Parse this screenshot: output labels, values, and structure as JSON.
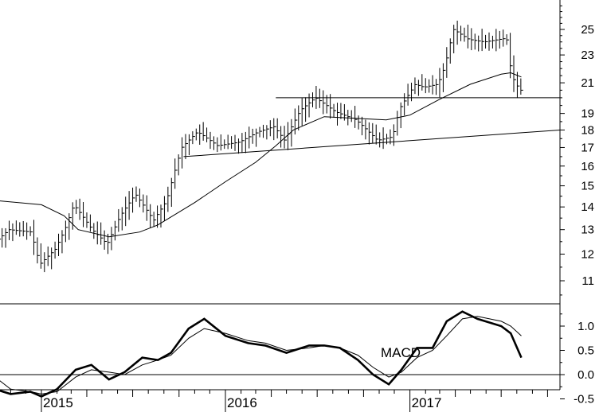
{
  "chart_data": [
    {
      "type": "line",
      "subtype": "weekly price bars (high-low-close) with moving average and trendlines",
      "y_scale": "log",
      "ylim": [
        10,
        28
      ],
      "yticks": [
        11,
        12,
        13,
        14,
        15,
        16,
        17,
        18,
        19,
        21,
        23,
        25
      ],
      "x_labels": [
        "2015",
        "2016",
        "2017"
      ],
      "x_range": [
        "2014-10",
        "2017-10"
      ],
      "price_path": [
        [
          "2014-10-01",
          12.4
        ],
        [
          "2014-11-01",
          13.0
        ],
        [
          "2014-12-15",
          12.9
        ],
        [
          "2015-01-01",
          11.6
        ],
        [
          "2015-02-01",
          12.2
        ],
        [
          "2015-02-20",
          13.0
        ],
        [
          "2015-03-10",
          14.1
        ],
        [
          "2015-04-15",
          13.0
        ],
        [
          "2015-05-15",
          12.4
        ],
        [
          "2015-06-10",
          13.6
        ],
        [
          "2015-07-10",
          14.6
        ],
        [
          "2015-08-15",
          13.4
        ],
        [
          "2015-09-10",
          14.3
        ],
        [
          "2015-10-10",
          17.0
        ],
        [
          "2015-11-10",
          17.9
        ],
        [
          "2015-12-20",
          17.1
        ],
        [
          "2016-02-01",
          17.3
        ],
        [
          "2016-03-10",
          17.9
        ],
        [
          "2016-04-10",
          18.2
        ],
        [
          "2016-05-01",
          17.4
        ],
        [
          "2016-06-01",
          19.2
        ],
        [
          "2016-07-01",
          20.0
        ],
        [
          "2016-08-10",
          19.1
        ],
        [
          "2016-09-20",
          18.6
        ],
        [
          "2016-11-01",
          17.4
        ],
        [
          "2016-12-01",
          17.6
        ],
        [
          "2016-12-15",
          19.3
        ],
        [
          "2017-01-15",
          20.9
        ],
        [
          "2017-02-01",
          20.7
        ],
        [
          "2017-03-01",
          20.9
        ],
        [
          "2017-03-15",
          22.2
        ],
        [
          "2017-04-01",
          25.0
        ],
        [
          "2017-05-01",
          24.2
        ],
        [
          "2017-06-01",
          24.0
        ],
        [
          "2017-07-01",
          24.2
        ],
        [
          "2017-07-15",
          24.3
        ],
        [
          "2017-07-25",
          21.5
        ],
        [
          "2017-08-10",
          20.5
        ]
      ],
      "moving_average": [
        [
          "2014-10-01",
          14.3
        ],
        [
          "2015-01-01",
          14.1
        ],
        [
          "2015-02-15",
          13.6
        ],
        [
          "2015-03-15",
          13.0
        ],
        [
          "2015-05-15",
          12.7
        ],
        [
          "2015-07-15",
          12.9
        ],
        [
          "2015-08-20",
          13.2
        ],
        [
          "2015-11-01",
          14.2
        ],
        [
          "2016-01-01",
          15.2
        ],
        [
          "2016-03-01",
          16.2
        ],
        [
          "2016-04-10",
          17.1
        ],
        [
          "2016-05-15",
          18.0
        ],
        [
          "2016-07-15",
          18.8
        ],
        [
          "2016-09-15",
          18.7
        ],
        [
          "2016-11-15",
          18.6
        ],
        [
          "2017-01-01",
          18.9
        ],
        [
          "2017-03-01",
          19.9
        ],
        [
          "2017-05-01",
          20.9
        ],
        [
          "2017-07-01",
          21.6
        ],
        [
          "2017-07-20",
          21.7
        ],
        [
          "2017-08-10",
          21.4
        ]
      ],
      "trendlines": [
        {
          "kind": "horizontal",
          "from": [
            "2016-04-10",
            20.0
          ],
          "to": [
            "2017-10-31",
            20.0
          ]
        },
        {
          "kind": "rising",
          "from": [
            "2015-10-10",
            16.5
          ],
          "to": [
            "2017-10-31",
            18.0
          ]
        }
      ]
    },
    {
      "type": "line",
      "title": "MACD",
      "ylim": [
        -0.55,
        1.55
      ],
      "yticks": [
        -0.5,
        0.0,
        0.5,
        1.0
      ],
      "ytick_labels": [
        "-0.5",
        "0.0",
        "0.5",
        "1.0"
      ],
      "zero_line": true,
      "series": [
        {
          "line_weight": "thick",
          "values": [
            [
              "2014-10-01",
              -0.3
            ],
            [
              "2014-11-01",
              -0.4
            ],
            [
              "2014-12-10",
              -0.35
            ],
            [
              "2015-01-01",
              -0.45
            ],
            [
              "2015-02-01",
              -0.3
            ],
            [
              "2015-03-10",
              0.1
            ],
            [
              "2015-04-10",
              0.2
            ],
            [
              "2015-05-15",
              -0.1
            ],
            [
              "2015-06-15",
              0.05
            ],
            [
              "2015-07-20",
              0.35
            ],
            [
              "2015-08-20",
              0.3
            ],
            [
              "2015-09-15",
              0.45
            ],
            [
              "2015-10-20",
              0.95
            ],
            [
              "2015-11-20",
              1.15
            ],
            [
              "2016-01-01",
              0.8
            ],
            [
              "2016-02-15",
              0.65
            ],
            [
              "2016-03-20",
              0.6
            ],
            [
              "2016-05-01",
              0.45
            ],
            [
              "2016-06-15",
              0.6
            ],
            [
              "2016-07-15",
              0.6
            ],
            [
              "2016-08-15",
              0.55
            ],
            [
              "2016-09-20",
              0.3
            ],
            [
              "2016-10-20",
              0.0
            ],
            [
              "2016-11-20",
              -0.2
            ],
            [
              "2016-12-15",
              0.1
            ],
            [
              "2017-01-15",
              0.55
            ],
            [
              "2017-02-15",
              0.55
            ],
            [
              "2017-03-15",
              1.1
            ],
            [
              "2017-04-15",
              1.3
            ],
            [
              "2017-05-15",
              1.15
            ],
            [
              "2017-07-01",
              1.0
            ],
            [
              "2017-07-20",
              0.85
            ],
            [
              "2017-08-10",
              0.35
            ]
          ]
        },
        {
          "line_weight": "thin",
          "values": [
            [
              "2014-10-01",
              -0.05
            ],
            [
              "2014-11-01",
              -0.3
            ],
            [
              "2014-12-10",
              -0.35
            ],
            [
              "2015-01-01",
              -0.4
            ],
            [
              "2015-02-01",
              -0.35
            ],
            [
              "2015-03-10",
              -0.05
            ],
            [
              "2015-04-10",
              0.1
            ],
            [
              "2015-05-15",
              0.05
            ],
            [
              "2015-06-15",
              0.0
            ],
            [
              "2015-07-20",
              0.2
            ],
            [
              "2015-08-20",
              0.3
            ],
            [
              "2015-09-15",
              0.4
            ],
            [
              "2015-10-20",
              0.75
            ],
            [
              "2015-11-20",
              0.95
            ],
            [
              "2016-01-01",
              0.85
            ],
            [
              "2016-02-15",
              0.7
            ],
            [
              "2016-03-20",
              0.65
            ],
            [
              "2016-05-01",
              0.5
            ],
            [
              "2016-06-15",
              0.55
            ],
            [
              "2016-07-15",
              0.6
            ],
            [
              "2016-08-15",
              0.55
            ],
            [
              "2016-09-20",
              0.4
            ],
            [
              "2016-10-20",
              0.15
            ],
            [
              "2016-11-20",
              -0.05
            ],
            [
              "2016-12-15",
              0.05
            ],
            [
              "2017-01-15",
              0.35
            ],
            [
              "2017-02-15",
              0.5
            ],
            [
              "2017-03-15",
              0.8
            ],
            [
              "2017-04-15",
              1.15
            ],
            [
              "2017-05-15",
              1.2
            ],
            [
              "2017-07-01",
              1.1
            ],
            [
              "2017-07-20",
              1.0
            ],
            [
              "2017-08-10",
              0.8
            ]
          ]
        }
      ]
    }
  ]
}
